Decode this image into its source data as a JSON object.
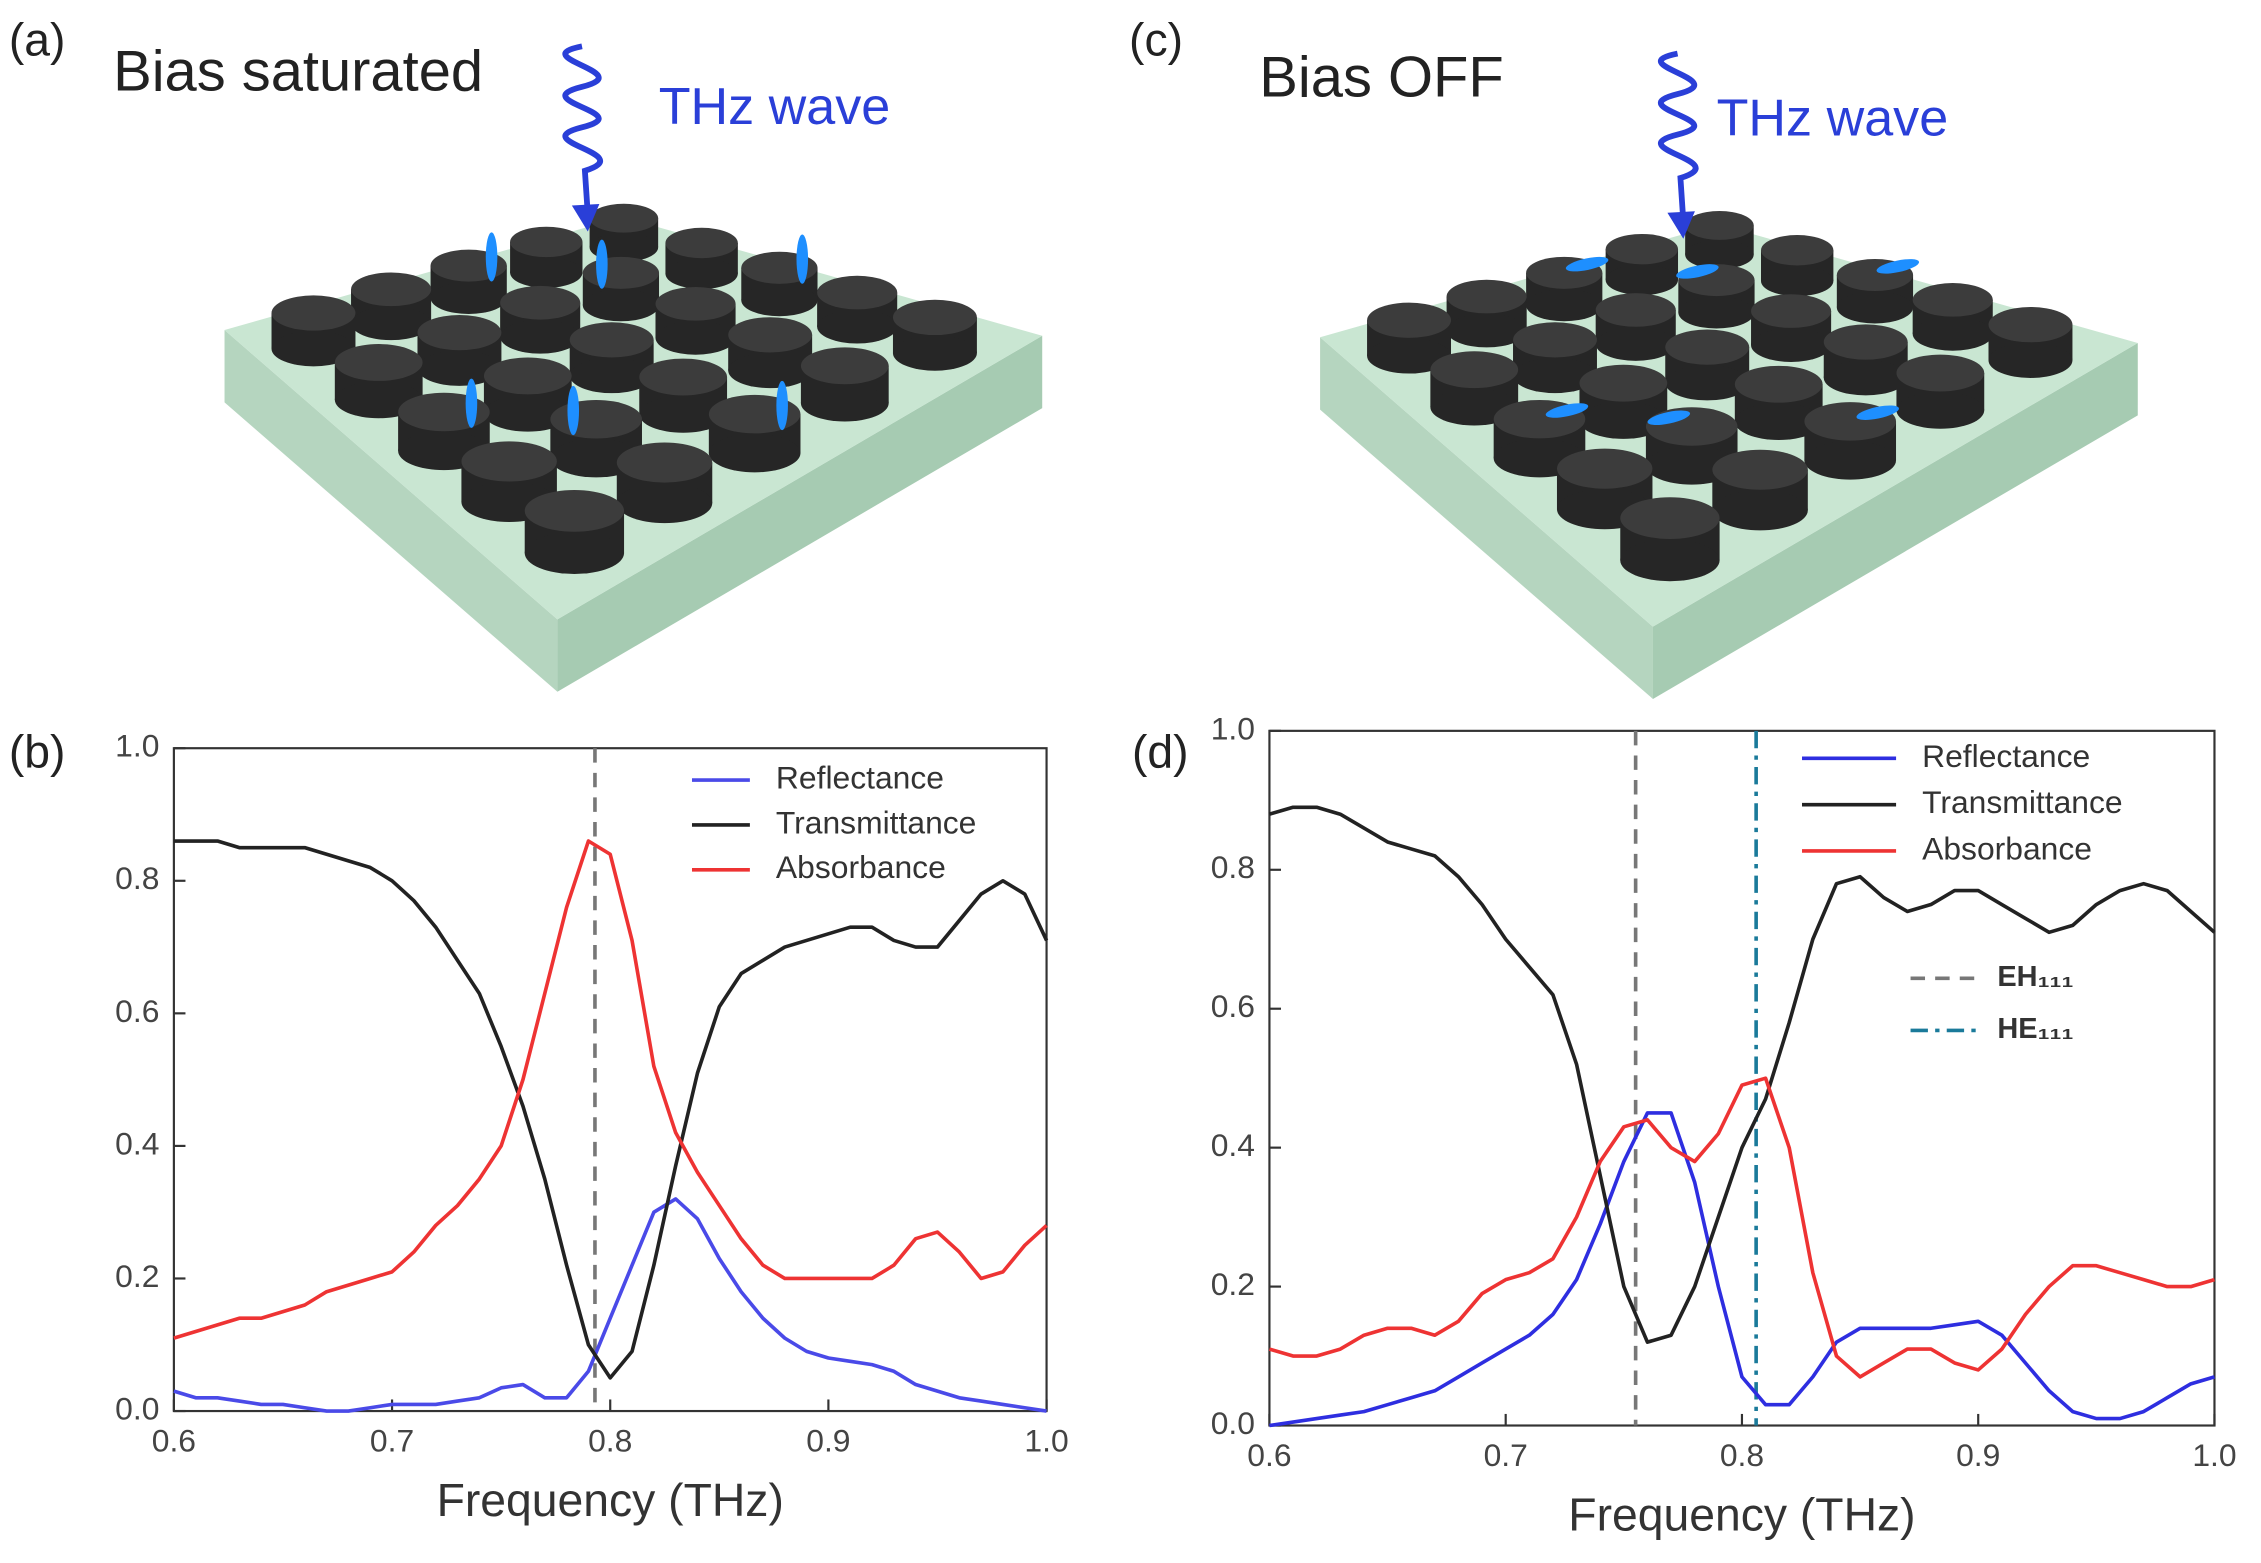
{
  "figure": {
    "panel_labels": [
      "(a)",
      "(b)",
      "(c)",
      "(d)"
    ],
    "illustrations": [
      {
        "title": "Bias saturated",
        "wave_label": "THz wave"
      },
      {
        "title": "Bias OFF",
        "wave_label": "THz wave"
      }
    ]
  },
  "chart_data": [
    {
      "type": "line",
      "xlabel": "Frequency (THz)",
      "xlim": [
        0.6,
        1.0
      ],
      "ylim": [
        0,
        1.0
      ],
      "xticks": [
        0.6,
        0.7,
        0.8,
        0.9,
        {
          "value": 1,
          "label": "1.0"
        }
      ],
      "yticks": [
        {
          "value": 0,
          "label": "0.0"
        },
        0.2,
        0.4,
        0.6,
        0.8,
        {
          "value": 1,
          "label": "1.0"
        }
      ],
      "legend": "upper right",
      "x": [
        0.6,
        0.61,
        0.62,
        0.63,
        0.64,
        0.65,
        0.66,
        0.67,
        0.68,
        0.69,
        0.7,
        0.71,
        0.72,
        0.73,
        0.74,
        0.75,
        0.76,
        0.77,
        0.78,
        0.79,
        0.8,
        0.81,
        0.82,
        0.83,
        0.84,
        0.85,
        0.86,
        0.87,
        0.88,
        0.89,
        0.9,
        0.91,
        0.92,
        0.93,
        0.94,
        0.95,
        0.96,
        0.97,
        0.98,
        0.99,
        1.0
      ],
      "series": [
        {
          "name": "Reflectance",
          "color": "#4a4ae8",
          "values": [
            0.03,
            0.02,
            0.02,
            0.015,
            0.01,
            0.01,
            0.005,
            0,
            0,
            0.005,
            0.01,
            0.01,
            0.01,
            0.015,
            0.02,
            0.035,
            0.04,
            0.02,
            0.02,
            0.06,
            0.14,
            0.22,
            0.3,
            0.32,
            0.29,
            0.23,
            0.18,
            0.14,
            0.11,
            0.09,
            0.08,
            0.075,
            0.07,
            0.06,
            0.04,
            0.03,
            0.02,
            0.015,
            0.01,
            0.005,
            0
          ]
        },
        {
          "name": "Transmittance",
          "color": "#222222",
          "values": [
            0.86,
            0.86,
            0.86,
            0.85,
            0.85,
            0.85,
            0.85,
            0.84,
            0.83,
            0.82,
            0.8,
            0.77,
            0.73,
            0.68,
            0.63,
            0.55,
            0.46,
            0.35,
            0.22,
            0.1,
            0.05,
            0.09,
            0.22,
            0.37,
            0.51,
            0.61,
            0.66,
            0.68,
            0.7,
            0.71,
            0.72,
            0.73,
            0.73,
            0.71,
            0.7,
            0.7,
            0.74,
            0.78,
            0.8,
            0.78,
            0.71
          ]
        },
        {
          "name": "Absorbance",
          "color": "#ee3333",
          "values": [
            0.11,
            0.12,
            0.13,
            0.14,
            0.14,
            0.15,
            0.16,
            0.18,
            0.19,
            0.2,
            0.21,
            0.24,
            0.28,
            0.31,
            0.35,
            0.4,
            0.5,
            0.63,
            0.76,
            0.86,
            0.84,
            0.71,
            0.52,
            0.42,
            0.36,
            0.31,
            0.26,
            0.22,
            0.2,
            0.2,
            0.2,
            0.2,
            0.2,
            0.22,
            0.26,
            0.27,
            0.24,
            0.2,
            0.21,
            0.25,
            0.28
          ]
        }
      ],
      "vlines": [
        {
          "x": 0.793,
          "color": "#777777",
          "dash": "dashed"
        }
      ]
    },
    {
      "type": "line",
      "xlabel": "Frequency (THz)",
      "xlim": [
        0.6,
        1.0
      ],
      "ylim": [
        0,
        1.0
      ],
      "xticks": [
        0.6,
        0.7,
        0.8,
        0.9,
        {
          "value": 1,
          "label": "1.0"
        }
      ],
      "yticks": [
        {
          "value": 0,
          "label": "0.0"
        },
        0.2,
        0.4,
        0.6,
        0.8,
        {
          "value": 1,
          "label": "1.0"
        }
      ],
      "legend": "upper right",
      "x": [
        0.6,
        0.61,
        0.62,
        0.63,
        0.64,
        0.65,
        0.66,
        0.67,
        0.68,
        0.69,
        0.7,
        0.71,
        0.72,
        0.73,
        0.74,
        0.75,
        0.76,
        0.77,
        0.78,
        0.79,
        0.8,
        0.81,
        0.82,
        0.83,
        0.84,
        0.85,
        0.86,
        0.87,
        0.88,
        0.89,
        0.9,
        0.91,
        0.92,
        0.93,
        0.94,
        0.95,
        0.96,
        0.97,
        0.98,
        0.99,
        1.0
      ],
      "series": [
        {
          "name": "Reflectance",
          "color": "#2e2ee0",
          "values": [
            0,
            0.005,
            0.01,
            0.015,
            0.02,
            0.03,
            0.04,
            0.05,
            0.07,
            0.09,
            0.11,
            0.13,
            0.16,
            0.21,
            0.29,
            0.38,
            0.45,
            0.45,
            0.35,
            0.2,
            0.07,
            0.03,
            0.03,
            0.07,
            0.12,
            0.14,
            0.14,
            0.14,
            0.14,
            0.145,
            0.15,
            0.13,
            0.09,
            0.05,
            0.02,
            0.01,
            0.01,
            0.02,
            0.04,
            0.06,
            0.07
          ]
        },
        {
          "name": "Transmittance",
          "color": "#222222",
          "values": [
            0.88,
            0.89,
            0.89,
            0.88,
            0.86,
            0.84,
            0.83,
            0.82,
            0.79,
            0.75,
            0.7,
            0.66,
            0.62,
            0.52,
            0.36,
            0.2,
            0.12,
            0.13,
            0.2,
            0.3,
            0.4,
            0.47,
            0.58,
            0.7,
            0.78,
            0.79,
            0.76,
            0.74,
            0.75,
            0.77,
            0.77,
            0.75,
            0.73,
            0.71,
            0.72,
            0.75,
            0.77,
            0.78,
            0.77,
            0.74,
            0.71
          ]
        },
        {
          "name": "Absorbance",
          "color": "#ee3333",
          "values": [
            0.11,
            0.1,
            0.1,
            0.11,
            0.13,
            0.14,
            0.14,
            0.13,
            0.15,
            0.19,
            0.21,
            0.22,
            0.24,
            0.3,
            0.38,
            0.43,
            0.44,
            0.4,
            0.38,
            0.42,
            0.49,
            0.5,
            0.4,
            0.22,
            0.1,
            0.07,
            0.09,
            0.11,
            0.11,
            0.09,
            0.08,
            0.11,
            0.16,
            0.2,
            0.23,
            0.23,
            0.22,
            0.21,
            0.2,
            0.2,
            0.21
          ]
        }
      ],
      "vlines": [
        {
          "name": "EH₁₁₁",
          "x": 0.755,
          "color": "#777777",
          "dash": "dashed"
        },
        {
          "name": "HE₁₁₁",
          "x": 0.806,
          "color": "#1a7a9a",
          "dash": "dashdot"
        }
      ]
    }
  ]
}
